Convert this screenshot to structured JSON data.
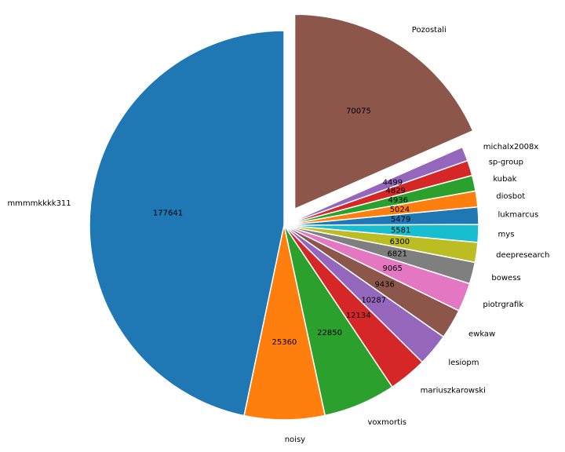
{
  "chart_data": {
    "type": "pie",
    "title": "",
    "start_angle_deg": 90,
    "direction": "counterclockwise",
    "slices": [
      {
        "label": "mmmmkkkk311",
        "value": 177641,
        "color": "#1f77b4"
      },
      {
        "label": "noisy",
        "value": 25360,
        "color": "#ff7f0e"
      },
      {
        "label": "voxmortis",
        "value": 22850,
        "color": "#2ca02c"
      },
      {
        "label": "mariuszkarowski",
        "value": 12134,
        "color": "#d62728"
      },
      {
        "label": "lesiopm",
        "value": 10287,
        "color": "#9467bd"
      },
      {
        "label": "ewkaw",
        "value": 9436,
        "color": "#8c564b"
      },
      {
        "label": "piotrgrafik",
        "value": 9065,
        "color": "#e377c2"
      },
      {
        "label": "bowess",
        "value": 6821,
        "color": "#7f7f7f"
      },
      {
        "label": "deepresearch",
        "value": 6300,
        "color": "#bcbd22"
      },
      {
        "label": "mys",
        "value": 5581,
        "color": "#17becf"
      },
      {
        "label": "lukmarcus",
        "value": 5479,
        "color": "#1f77b4"
      },
      {
        "label": "diosbot",
        "value": 5024,
        "color": "#ff7f0e"
      },
      {
        "label": "kubak",
        "value": 4936,
        "color": "#2ca02c"
      },
      {
        "label": "sp-group",
        "value": 4829,
        "color": "#d62728"
      },
      {
        "label": "michalx2008x",
        "value": 4499,
        "color": "#9467bd"
      },
      {
        "label": "Pozostali",
        "value": 70075,
        "color": "#8c564b",
        "exploded": true
      }
    ]
  }
}
